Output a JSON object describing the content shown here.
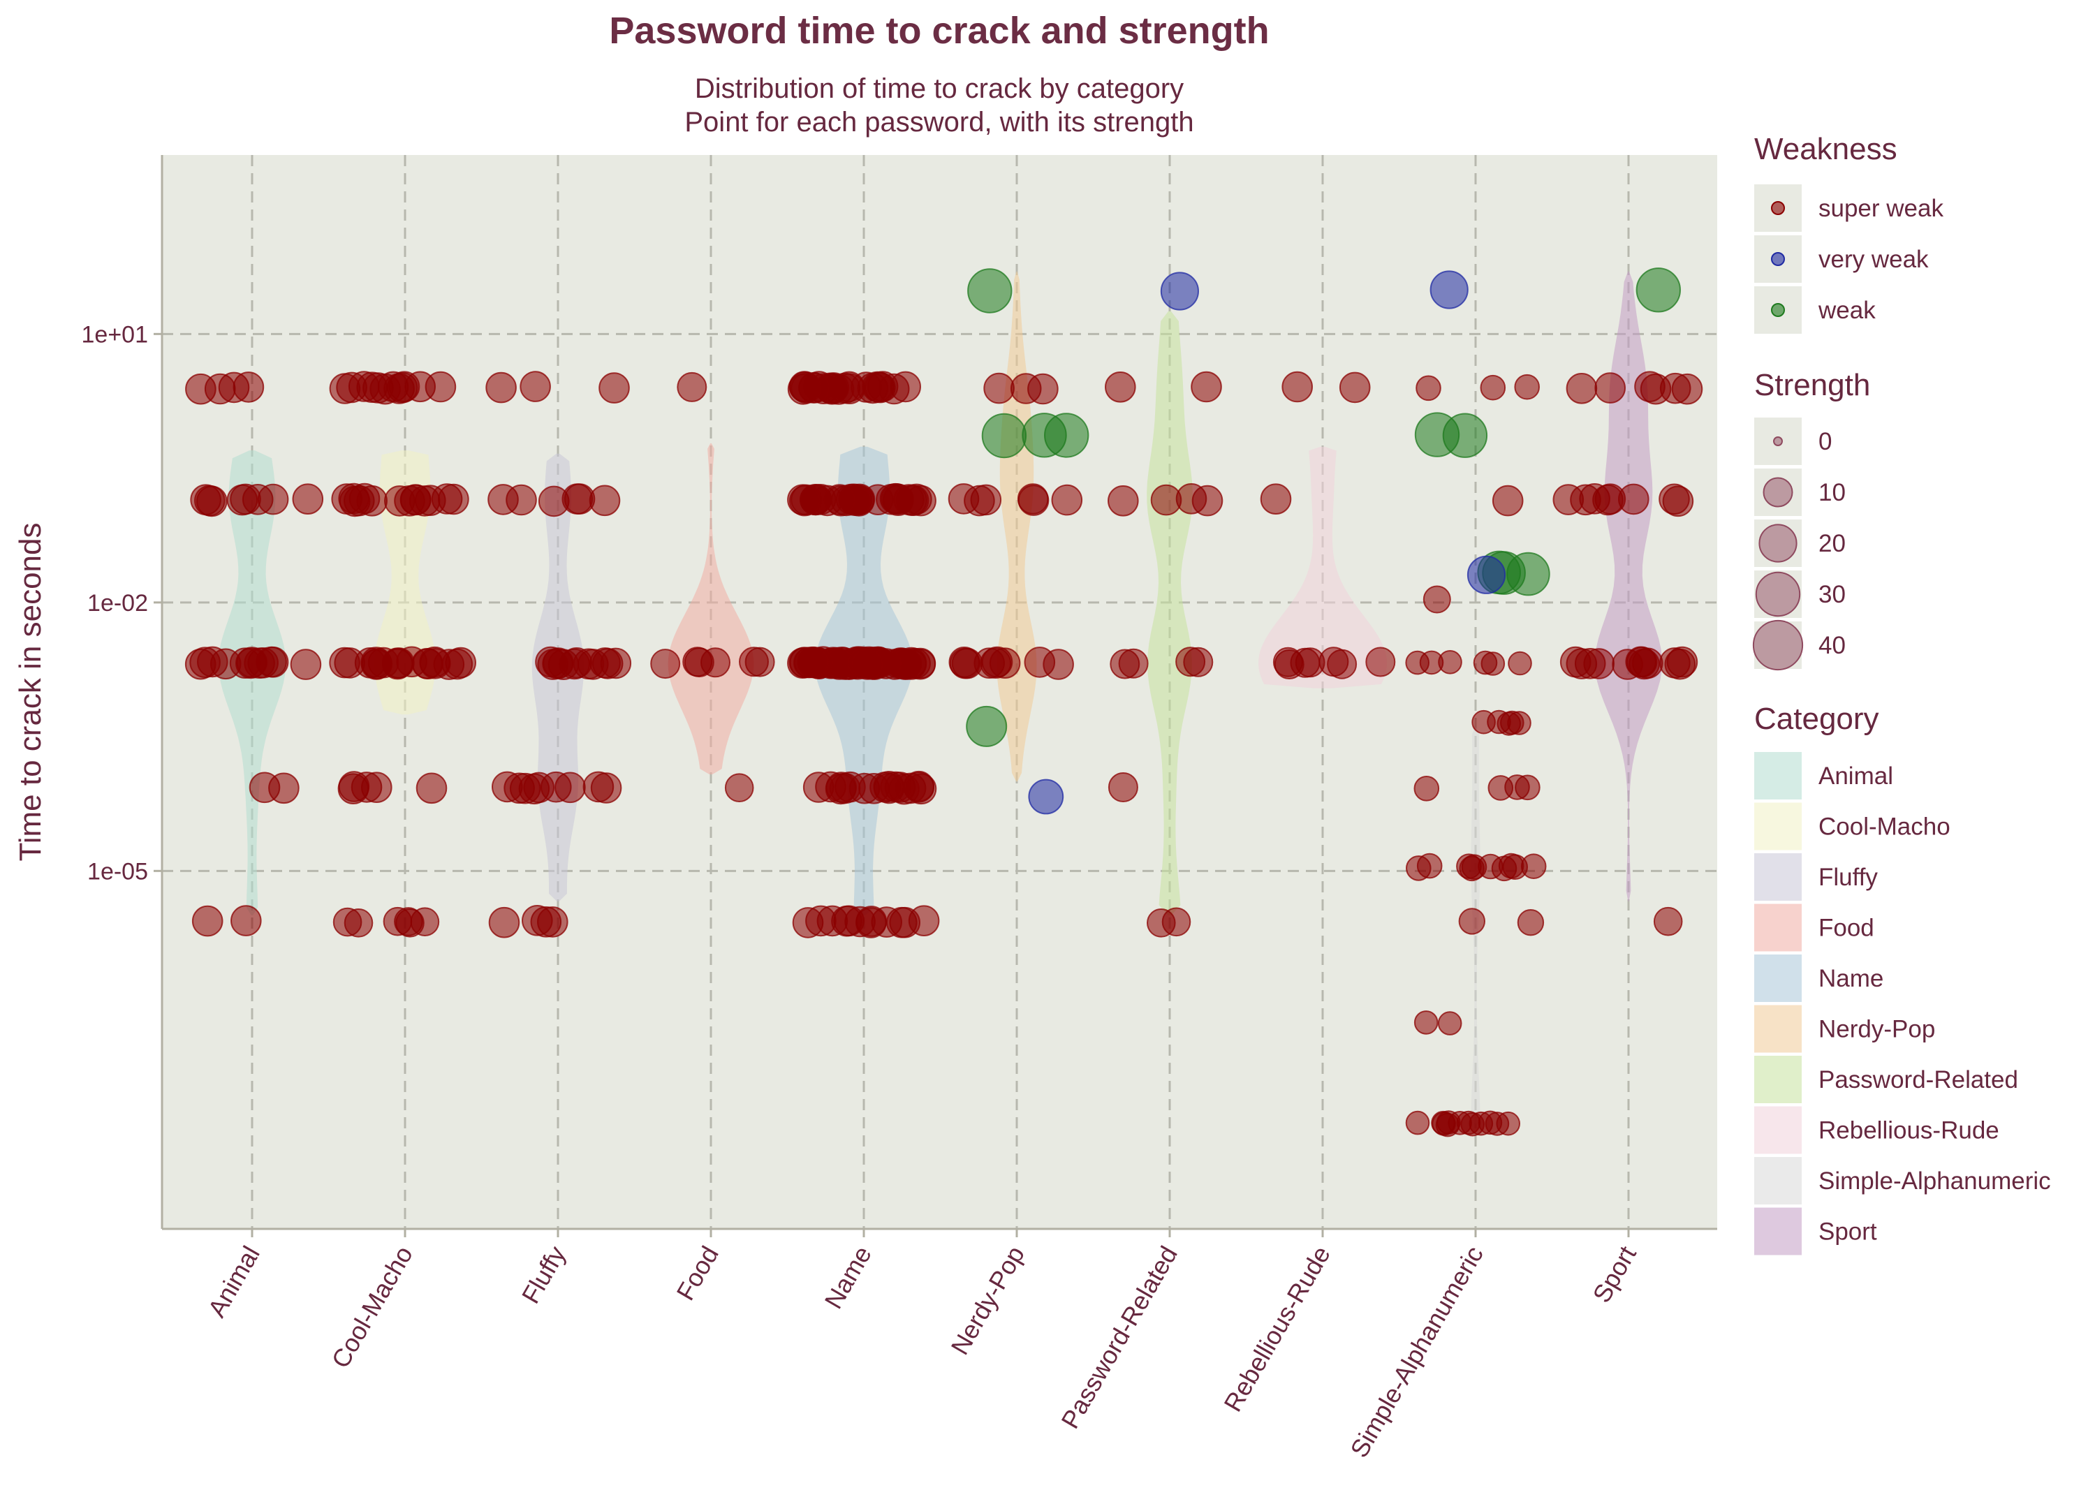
{
  "chart_data": {
    "type": "scatter",
    "overlay": "violin",
    "title": "Password time to crack and strength",
    "subtitle_lines": [
      "Distribution of time to crack by category",
      "Point for each password, with its strength"
    ],
    "xlabel": "",
    "ylabel": "Time to crack in seconds",
    "y_scale": "log10",
    "ylim": [
      1e-09,
      1000
    ],
    "y_ticks": [
      1e-05,
      0.01,
      10
    ],
    "y_tick_labels": [
      "1e-05",
      "1e-02",
      "1e+01"
    ],
    "grid": true,
    "categories": [
      "Animal",
      "Cool-Macho",
      "Fluffy",
      "Food",
      "Name",
      "Nerdy-Pop",
      "Password-Related",
      "Rebellious-Rude",
      "Simple-Alphanumeric",
      "Sport"
    ],
    "category_colors": [
      "#b3dccf",
      "#f1f1c4",
      "#c9c7d7",
      "#f0ada4",
      "#a9c6d9",
      "#f0cb98",
      "#c6e19f",
      "#f1d1da",
      "#d8d8d8",
      "#c39dc5"
    ],
    "violins": [
      {
        "category": "Animal",
        "lo": 3.2e-06,
        "hi": 0.5,
        "max_width": 0.22
      },
      {
        "category": "Cool-Macho",
        "lo": 0.00056,
        "hi": 0.5,
        "max_width": 0.2
      },
      {
        "category": "Fluffy",
        "lo": 4.6e-06,
        "hi": 0.46,
        "max_width": 0.17
      },
      {
        "category": "Food",
        "lo": 0.00012,
        "hi": 0.6,
        "max_width": 0.28
      },
      {
        "category": "Name",
        "lo": 3.2e-06,
        "hi": 0.55,
        "max_width": 0.32
      },
      {
        "category": "Nerdy-Pop",
        "lo": 0.0001,
        "hi": 50,
        "max_width": 0.13
      },
      {
        "category": "Password-Related",
        "lo": 3.2e-06,
        "hi": 18,
        "max_width": 0.15
      },
      {
        "category": "Rebellious-Rude",
        "lo": 0.0011,
        "hi": 0.55,
        "max_width": 0.42
      },
      {
        "category": "Simple-Alphanumeric",
        "lo": 1.5e-08,
        "hi": 0.0004,
        "max_width": 0.03
      },
      {
        "category": "Sport",
        "lo": 4.6e-06,
        "hi": 50,
        "max_width": 0.22
      }
    ],
    "weakness_colors": {
      "super weak": "#8b0000",
      "very weak": "#1f2aa3",
      "weak": "#1e7a1e"
    },
    "points": [
      {
        "category": "Animal",
        "y": 0.0021,
        "weakness": "super weak",
        "strength": 11,
        "count": 12
      },
      {
        "category": "Animal",
        "y": 0.14,
        "weakness": "super weak",
        "strength": 11,
        "count": 8
      },
      {
        "category": "Animal",
        "y": 2.5,
        "weakness": "super weak",
        "strength": 11,
        "count": 4
      },
      {
        "category": "Animal",
        "y": 8.5e-05,
        "weakness": "super weak",
        "strength": 11,
        "count": 2
      },
      {
        "category": "Animal",
        "y": 2.7e-06,
        "weakness": "super weak",
        "strength": 11,
        "count": 2
      },
      {
        "category": "Cool-Macho",
        "y": 0.0021,
        "weakness": "super weak",
        "strength": 11,
        "count": 18
      },
      {
        "category": "Cool-Macho",
        "y": 0.14,
        "weakness": "super weak",
        "strength": 11,
        "count": 14
      },
      {
        "category": "Cool-Macho",
        "y": 2.5,
        "weakness": "super weak",
        "strength": 11,
        "count": 12
      },
      {
        "category": "Cool-Macho",
        "y": 8.5e-05,
        "weakness": "super weak",
        "strength": 11,
        "count": 5
      },
      {
        "category": "Cool-Macho",
        "y": 2.7e-06,
        "weakness": "super weak",
        "strength": 9,
        "count": 6
      },
      {
        "category": "Fluffy",
        "y": 0.0021,
        "weakness": "super weak",
        "strength": 11,
        "count": 12
      },
      {
        "category": "Fluffy",
        "y": 0.14,
        "weakness": "super weak",
        "strength": 11,
        "count": 6
      },
      {
        "category": "Fluffy",
        "y": 2.5,
        "weakness": "super weak",
        "strength": 11,
        "count": 3
      },
      {
        "category": "Fluffy",
        "y": 8.5e-05,
        "weakness": "super weak",
        "strength": 11,
        "count": 9
      },
      {
        "category": "Fluffy",
        "y": 2.7e-06,
        "weakness": "super weak",
        "strength": 11,
        "count": 4
      },
      {
        "category": "Food",
        "y": 0.0021,
        "weakness": "super weak",
        "strength": 10,
        "count": 6
      },
      {
        "category": "Food",
        "y": 2.5,
        "weakness": "super weak",
        "strength": 10,
        "count": 1
      },
      {
        "category": "Food",
        "y": 8.5e-05,
        "weakness": "super weak",
        "strength": 9,
        "count": 1
      },
      {
        "category": "Name",
        "y": 0.0021,
        "weakness": "super weak",
        "strength": 11,
        "count": 60
      },
      {
        "category": "Name",
        "y": 0.14,
        "weakness": "super weak",
        "strength": 11,
        "count": 30
      },
      {
        "category": "Name",
        "y": 2.5,
        "weakness": "super weak",
        "strength": 11,
        "count": 24
      },
      {
        "category": "Name",
        "y": 8.5e-05,
        "weakness": "super weak",
        "strength": 11,
        "count": 18
      },
      {
        "category": "Name",
        "y": 2.7e-06,
        "weakness": "super weak",
        "strength": 11,
        "count": 12
      },
      {
        "category": "Nerdy-Pop",
        "y": 0.0021,
        "weakness": "super weak",
        "strength": 11,
        "count": 9
      },
      {
        "category": "Nerdy-Pop",
        "y": 0.14,
        "weakness": "super weak",
        "strength": 11,
        "count": 6
      },
      {
        "category": "Nerdy-Pop",
        "y": 2.5,
        "weakness": "super weak",
        "strength": 11,
        "count": 3
      },
      {
        "category": "Nerdy-Pop",
        "y": 0.75,
        "weakness": "weak",
        "strength": 30,
        "count": 3
      },
      {
        "category": "Nerdy-Pop",
        "y": 0.0004,
        "weakness": "weak",
        "strength": 24,
        "count": 1
      },
      {
        "category": "Nerdy-Pop",
        "y": 7e-05,
        "weakness": "very weak",
        "strength": 16,
        "count": 1
      },
      {
        "category": "Nerdy-Pop",
        "y": 31,
        "weakness": "weak",
        "strength": 30,
        "count": 1
      },
      {
        "category": "Password-Related",
        "y": 31,
        "weakness": "very weak",
        "strength": 20,
        "count": 1
      },
      {
        "category": "Password-Related",
        "y": 2.5,
        "weakness": "super weak",
        "strength": 11,
        "count": 2
      },
      {
        "category": "Password-Related",
        "y": 0.14,
        "weakness": "super weak",
        "strength": 11,
        "count": 4
      },
      {
        "category": "Password-Related",
        "y": 0.0021,
        "weakness": "super weak",
        "strength": 10,
        "count": 4
      },
      {
        "category": "Password-Related",
        "y": 8.5e-05,
        "weakness": "super weak",
        "strength": 10,
        "count": 1
      },
      {
        "category": "Password-Related",
        "y": 2.7e-06,
        "weakness": "super weak",
        "strength": 9,
        "count": 2
      },
      {
        "category": "Rebellious-Rude",
        "y": 2.5,
        "weakness": "super weak",
        "strength": 11,
        "count": 2
      },
      {
        "category": "Rebellious-Rude",
        "y": 0.14,
        "weakness": "super weak",
        "strength": 11,
        "count": 1
      },
      {
        "category": "Rebellious-Rude",
        "y": 0.0021,
        "weakness": "super weak",
        "strength": 10,
        "count": 7
      },
      {
        "category": "Simple-Alphanumeric",
        "y": 31,
        "weakness": "very weak",
        "strength": 20,
        "count": 1
      },
      {
        "category": "Simple-Alphanumeric",
        "y": 2.5,
        "weakness": "super weak",
        "strength": 6,
        "count": 3
      },
      {
        "category": "Simple-Alphanumeric",
        "y": 0.75,
        "weakness": "weak",
        "strength": 30,
        "count": 2
      },
      {
        "category": "Simple-Alphanumeric",
        "y": 0.14,
        "weakness": "super weak",
        "strength": 11,
        "count": 1
      },
      {
        "category": "Simple-Alphanumeric",
        "y": 0.021,
        "weakness": "weak",
        "strength": 28,
        "count": 3
      },
      {
        "category": "Simple-Alphanumeric",
        "y": 0.021,
        "weakness": "very weak",
        "strength": 20,
        "count": 1
      },
      {
        "category": "Simple-Alphanumeric",
        "y": 0.011,
        "weakness": "super weak",
        "strength": 8,
        "count": 1
      },
      {
        "category": "Simple-Alphanumeric",
        "y": 0.0021,
        "weakness": "super weak",
        "strength": 5,
        "count": 6
      },
      {
        "category": "Simple-Alphanumeric",
        "y": 0.00045,
        "weakness": "super weak",
        "strength": 5,
        "count": 5
      },
      {
        "category": "Simple-Alphanumeric",
        "y": 8.5e-05,
        "weakness": "super weak",
        "strength": 6,
        "count": 4
      },
      {
        "category": "Simple-Alphanumeric",
        "y": 1.1e-05,
        "weakness": "super weak",
        "strength": 6,
        "count": 10
      },
      {
        "category": "Simple-Alphanumeric",
        "y": 2.7e-06,
        "weakness": "super weak",
        "strength": 7,
        "count": 2
      },
      {
        "category": "Simple-Alphanumeric",
        "y": 2e-07,
        "weakness": "super weak",
        "strength": 5,
        "count": 2
      },
      {
        "category": "Simple-Alphanumeric",
        "y": 1.5e-08,
        "weakness": "super weak",
        "strength": 5,
        "count": 12
      },
      {
        "category": "Sport",
        "y": 31,
        "weakness": "weak",
        "strength": 30,
        "count": 1
      },
      {
        "category": "Sport",
        "y": 2.5,
        "weakness": "super weak",
        "strength": 11,
        "count": 6
      },
      {
        "category": "Sport",
        "y": 0.14,
        "weakness": "super weak",
        "strength": 11,
        "count": 8
      },
      {
        "category": "Sport",
        "y": 0.0021,
        "weakness": "super weak",
        "strength": 11,
        "count": 12
      },
      {
        "category": "Sport",
        "y": 2.7e-06,
        "weakness": "super weak",
        "strength": 9,
        "count": 1
      }
    ]
  },
  "legend": {
    "weakness": {
      "title": "Weakness",
      "items": [
        {
          "label": "super weak",
          "color": "#8b0000"
        },
        {
          "label": "very weak",
          "color": "#1f2aa3"
        },
        {
          "label": "weak",
          "color": "#1e7a1e"
        }
      ]
    },
    "strength": {
      "title": "Strength",
      "items": [
        {
          "label": "0",
          "value": 0
        },
        {
          "label": "10",
          "value": 10
        },
        {
          "label": "20",
          "value": 20
        },
        {
          "label": "30",
          "value": 30
        },
        {
          "label": "40",
          "value": 40
        }
      ]
    },
    "category": {
      "title": "Category",
      "items": [
        {
          "label": "Animal",
          "color": "#b3dccf"
        },
        {
          "label": "Cool-Macho",
          "color": "#f1f1c4"
        },
        {
          "label": "Fluffy",
          "color": "#c9c7d7"
        },
        {
          "label": "Food",
          "color": "#f0ada4"
        },
        {
          "label": "Name",
          "color": "#a9c6d9"
        },
        {
          "label": "Nerdy-Pop",
          "color": "#f0cb98"
        },
        {
          "label": "Password-Related",
          "color": "#c6e19f"
        },
        {
          "label": "Rebellious-Rude",
          "color": "#f1d1da"
        },
        {
          "label": "Simple-Alphanumeric",
          "color": "#d8d8d8"
        },
        {
          "label": "Sport",
          "color": "#c39dc5"
        }
      ]
    }
  }
}
